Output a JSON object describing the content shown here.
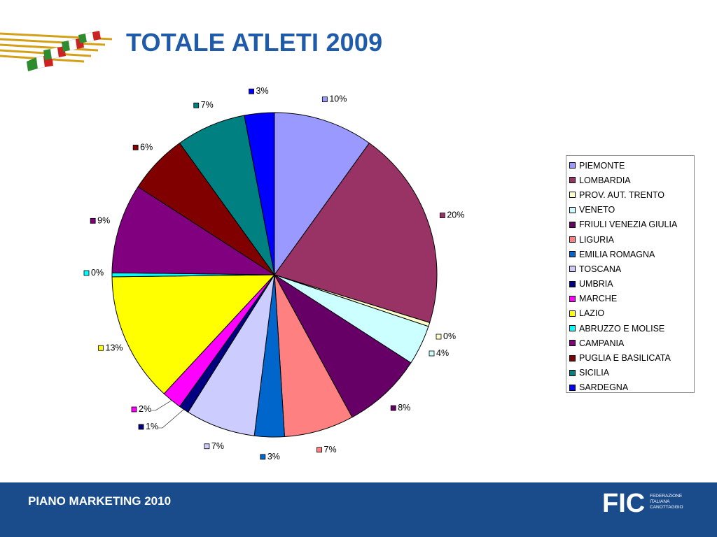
{
  "header": {
    "title": "TOTALE ATLETI 2009"
  },
  "footer": {
    "label": "PIANO MARKETING 2010",
    "org_letters": "FIC",
    "org_name_lines": [
      "FEDERAZIONE",
      "ITALIANA",
      "CANOTTAGGIO"
    ]
  },
  "colors": {
    "title": "#1f5ba8",
    "footer_bg": "#1a4c8c"
  },
  "chart_data": {
    "type": "pie",
    "title": "",
    "legend_position": "right",
    "categories": [
      "PIEMONTE",
      "LOMBARDIA",
      "PROV. AUT. TRENTO",
      "VENETO",
      "FRIULI VENEZIA GIULIA",
      "LIGURIA",
      "EMILIA ROMAGNA",
      "TOSCANA",
      "UMBRIA",
      "MARCHE",
      "LAZIO",
      "ABRUZZO E MOLISE",
      "CAMPANIA",
      "PUGLIA E BASILICATA",
      "SICILIA",
      "SARDEGNA"
    ],
    "values": [
      10,
      20,
      0,
      4,
      8,
      7,
      3,
      7,
      1,
      2,
      13,
      0,
      9,
      6,
      7,
      3
    ],
    "labels": [
      "10%",
      "20%",
      "0%",
      "4%",
      "8%",
      "7%",
      "3%",
      "7%",
      "1%",
      "2%",
      "13%",
      "0%",
      "9%",
      "6%",
      "7%",
      "3%"
    ],
    "slice_order": [
      0,
      1,
      2,
      3,
      4,
      5,
      6,
      7,
      8,
      9,
      10,
      11,
      12,
      13,
      14,
      15
    ],
    "colors": [
      "#9999ff",
      "#993366",
      "#ffffcc",
      "#ccffff",
      "#660066",
      "#ff8080",
      "#0066cc",
      "#ccccff",
      "#000080",
      "#ff00ff",
      "#ffff00",
      "#00ffff",
      "#800080",
      "#800000",
      "#008080",
      "#0000ff"
    ]
  }
}
